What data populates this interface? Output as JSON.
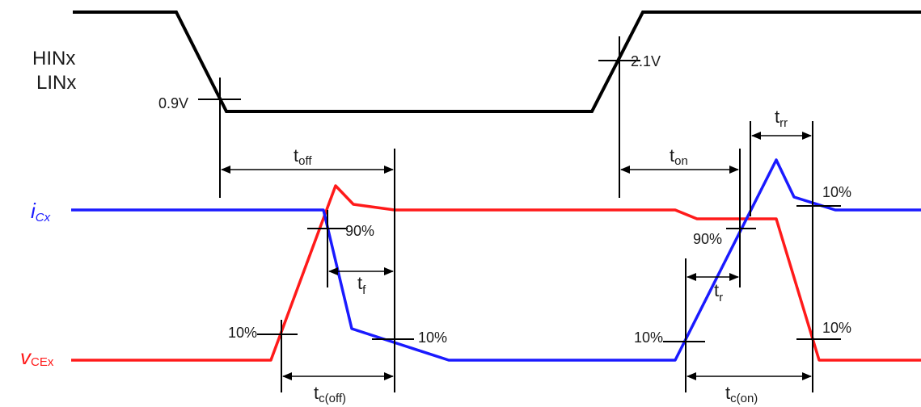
{
  "signals": {
    "input_line1": "HINx",
    "input_line2": "LINx",
    "current": {
      "main": "i",
      "sub": "Cx"
    },
    "voltage": {
      "main": "v",
      "sub": "CEx"
    }
  },
  "thresholds": {
    "low": "0.9V",
    "high": "2.1V",
    "p90_left": "90%",
    "p10_left_v": "10%",
    "p10_left_i": "10%",
    "p90_right": "90%",
    "p10_right_i": "10%",
    "p10_right_rr": "10%",
    "p10_right_v": "10%"
  },
  "intervals": {
    "toff": {
      "main": "t",
      "sub": "off"
    },
    "tf": {
      "main": "t",
      "sub": "f"
    },
    "tcoff": {
      "main": "t",
      "sub": "c(off)"
    },
    "ton": {
      "main": "t",
      "sub": "on"
    },
    "tr": {
      "main": "t",
      "sub": "r"
    },
    "trr": {
      "main": "t",
      "sub": "rr"
    },
    "tcon": {
      "main": "t",
      "sub": "c(on)"
    }
  },
  "colors": {
    "input_wave": "#000000",
    "current_wave": "#1a1aff",
    "voltage_wave": "#ff1a1a",
    "current_label": "#1a1aff",
    "voltage_label": "#ff1a1a"
  }
}
